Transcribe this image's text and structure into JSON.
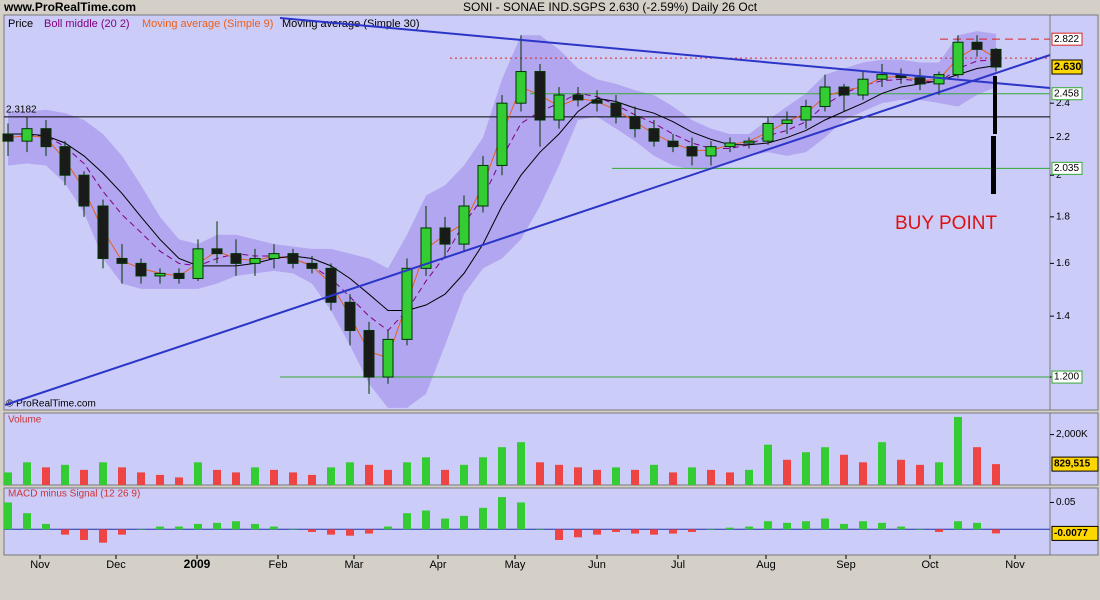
{
  "site": "www.ProRealTime.com",
  "title": "SONI - SONAE IND.SGPS   2.630 (-2.59%)   Daily  26 Oct",
  "copyright": "© ProRealTime.com",
  "xlabels": [
    "Nov",
    "Dec",
    "2009",
    "Feb",
    "Mar",
    "Apr",
    "May",
    "Jun",
    "Jul",
    "Aug",
    "Sep",
    "Oct",
    "Nov"
  ],
  "chart_data": [
    {
      "type": "candlestick",
      "price_label": "Price",
      "log_scale": true,
      "ylim": [
        1.104,
        3.0
      ],
      "yticks": [
        1.2,
        1.4,
        1.6,
        1.8,
        2,
        2.2,
        2.4
      ],
      "up_color": "#33cc33",
      "down_color": "#1a1a1a",
      "open": [
        2.22,
        2.18,
        2.25,
        2.15,
        2.0,
        1.85,
        1.62,
        1.6,
        1.55,
        1.56,
        1.54,
        1.66,
        1.64,
        1.6,
        1.62,
        1.64,
        1.6,
        1.58,
        1.45,
        1.35,
        1.2,
        1.32,
        1.58,
        1.75,
        1.68,
        1.85,
        2.05,
        2.4,
        2.6,
        2.3,
        2.45,
        2.42,
        2.4,
        2.32,
        2.25,
        2.18,
        2.15,
        2.1,
        2.15,
        2.17,
        2.18,
        2.28,
        2.3,
        2.38,
        2.5,
        2.45,
        2.55,
        2.58,
        2.56,
        2.52,
        2.58,
        2.8,
        2.75
      ],
      "high": [
        2.28,
        2.32,
        2.3,
        2.18,
        2.02,
        1.88,
        1.68,
        1.62,
        1.58,
        1.58,
        1.7,
        1.78,
        1.7,
        1.66,
        1.68,
        1.66,
        1.63,
        1.6,
        1.48,
        1.38,
        1.35,
        1.62,
        1.85,
        1.8,
        1.9,
        2.1,
        2.45,
        2.85,
        2.65,
        2.5,
        2.5,
        2.48,
        2.45,
        2.38,
        2.3,
        2.22,
        2.2,
        2.18,
        2.2,
        2.2,
        2.32,
        2.35,
        2.42,
        2.58,
        2.52,
        2.6,
        2.65,
        2.62,
        2.62,
        2.6,
        2.85,
        2.85,
        2.76
      ],
      "low": [
        2.1,
        2.12,
        2.1,
        1.95,
        1.8,
        1.58,
        1.52,
        1.52,
        1.52,
        1.52,
        1.53,
        1.6,
        1.55,
        1.55,
        1.58,
        1.58,
        1.56,
        1.42,
        1.3,
        1.15,
        1.18,
        1.3,
        1.55,
        1.62,
        1.65,
        1.82,
        2.0,
        2.35,
        2.15,
        2.25,
        2.38,
        2.35,
        2.28,
        2.2,
        2.15,
        2.12,
        2.05,
        2.05,
        2.12,
        2.14,
        2.16,
        2.22,
        2.25,
        2.35,
        2.35,
        2.42,
        2.5,
        2.52,
        2.48,
        2.45,
        2.56,
        2.7,
        2.6
      ],
      "close": [
        2.18,
        2.25,
        2.15,
        2.0,
        1.85,
        1.62,
        1.6,
        1.55,
        1.56,
        1.54,
        1.66,
        1.64,
        1.6,
        1.62,
        1.64,
        1.6,
        1.58,
        1.45,
        1.35,
        1.2,
        1.32,
        1.58,
        1.75,
        1.68,
        1.85,
        2.05,
        2.4,
        2.6,
        2.3,
        2.45,
        2.42,
        2.4,
        2.32,
        2.25,
        2.18,
        2.15,
        2.1,
        2.15,
        2.17,
        2.18,
        2.28,
        2.3,
        2.38,
        2.5,
        2.45,
        2.55,
        2.58,
        2.56,
        2.52,
        2.58,
        2.8,
        2.75,
        2.63
      ],
      "band": {
        "color": "#aa99ee",
        "upper": [
          2.35,
          2.35,
          2.36,
          2.34,
          2.3,
          2.22,
          2.1,
          1.95,
          1.8,
          1.7,
          1.68,
          1.72,
          1.72,
          1.7,
          1.68,
          1.67,
          1.66,
          1.66,
          1.64,
          1.62,
          1.58,
          1.72,
          1.9,
          1.95,
          2.05,
          2.2,
          2.55,
          2.85,
          2.85,
          2.75,
          2.62,
          2.55,
          2.52,
          2.48,
          2.45,
          2.38,
          2.3,
          2.25,
          2.22,
          2.22,
          2.3,
          2.38,
          2.46,
          2.58,
          2.62,
          2.66,
          2.68,
          2.68,
          2.66,
          2.66,
          2.85,
          2.88,
          2.86
        ],
        "lower": [
          2.05,
          2.06,
          2.05,
          1.96,
          1.82,
          1.62,
          1.52,
          1.5,
          1.5,
          1.5,
          1.5,
          1.52,
          1.55,
          1.56,
          1.57,
          1.56,
          1.52,
          1.42,
          1.3,
          1.18,
          1.11,
          1.11,
          1.15,
          1.3,
          1.48,
          1.58,
          1.62,
          1.7,
          1.85,
          2.05,
          2.3,
          2.32,
          2.25,
          2.18,
          2.1,
          2.05,
          2.03,
          2.03,
          2.06,
          2.1,
          2.12,
          2.1,
          2.12,
          2.2,
          2.3,
          2.35,
          2.4,
          2.42,
          2.42,
          2.4,
          2.38,
          2.45,
          2.5
        ]
      },
      "series": [
        {
          "name": "Boll middle (20 2)",
          "color": "#800080",
          "dashed": true,
          "values": [
            2.2,
            2.21,
            2.21,
            2.15,
            2.06,
            1.92,
            1.81,
            1.73,
            1.65,
            1.6,
            1.59,
            1.62,
            1.64,
            1.63,
            1.63,
            1.62,
            1.59,
            1.54,
            1.47,
            1.4,
            1.35,
            1.42,
            1.53,
            1.63,
            1.77,
            1.89,
            2.09,
            2.28,
            2.35,
            2.4,
            2.46,
            2.44,
            2.39,
            2.33,
            2.28,
            2.22,
            2.17,
            2.14,
            2.14,
            2.16,
            2.21,
            2.24,
            2.29,
            2.39,
            2.46,
            2.51,
            2.54,
            2.55,
            2.54,
            2.53,
            2.62,
            2.67,
            2.68
          ]
        },
        {
          "name": "Moving average (Simple 9)",
          "color": "#e8601c",
          "dashed": false,
          "values": [
            2.2,
            2.21,
            2.2,
            2.08,
            1.93,
            1.74,
            1.61,
            1.58,
            1.56,
            1.55,
            1.6,
            1.65,
            1.62,
            1.61,
            1.63,
            1.62,
            1.59,
            1.52,
            1.4,
            1.28,
            1.26,
            1.45,
            1.66,
            1.72,
            1.77,
            1.95,
            2.22,
            2.5,
            2.45,
            2.38,
            2.43,
            2.41,
            2.36,
            2.29,
            2.22,
            2.17,
            2.13,
            2.13,
            2.16,
            2.18,
            2.23,
            2.29,
            2.34,
            2.44,
            2.48,
            2.5,
            2.56,
            2.57,
            2.54,
            2.55,
            2.69,
            2.77,
            2.69
          ]
        },
        {
          "name": "Moving average (Simple 30)",
          "color": "#000000",
          "dashed": false,
          "values": [
            2.22,
            2.22,
            2.21,
            2.17,
            2.1,
            2.01,
            1.91,
            1.8,
            1.7,
            1.62,
            1.59,
            1.59,
            1.59,
            1.6,
            1.62,
            1.63,
            1.62,
            1.59,
            1.54,
            1.48,
            1.42,
            1.42,
            1.44,
            1.48,
            1.56,
            1.68,
            1.85,
            2.0,
            2.12,
            2.22,
            2.35,
            2.43,
            2.41,
            2.37,
            2.34,
            2.29,
            2.23,
            2.19,
            2.16,
            2.16,
            2.17,
            2.2,
            2.24,
            2.3,
            2.35,
            2.4,
            2.46,
            2.5,
            2.52,
            2.54,
            2.58,
            2.62,
            2.64
          ]
        }
      ],
      "levels": [
        {
          "value": 2.3182,
          "label": "2.3182",
          "color": "#000000",
          "side": "left"
        },
        {
          "value": 1.2,
          "label": "1.200",
          "color": "#33aa33",
          "side": "right"
        },
        {
          "value": 2.035,
          "label": "2.035",
          "color": "#33aa33",
          "side": "right"
        },
        {
          "value": 2.458,
          "label": "2.458",
          "color": "#33aa33",
          "side": "right"
        },
        {
          "value": 2.822,
          "label": "2.822",
          "color": "#dd2222",
          "side": "right",
          "dash": "8 5"
        },
        {
          "value": 2.69,
          "color": "#dd2222",
          "dash": "2 3"
        }
      ],
      "last_price": {
        "value": 2.63,
        "label": "2.630"
      },
      "annotation": "BUY POINT"
    },
    {
      "type": "bar",
      "title": "Volume",
      "ylim": [
        0,
        2857
      ],
      "yticks": [
        {
          "value": 2000,
          "label": "2,000K"
        }
      ],
      "color": "#33cc33",
      "down_color": "#ee4444",
      "values": [
        500,
        900,
        700,
        800,
        600,
        900,
        700,
        500,
        400,
        300,
        900,
        600,
        500,
        700,
        600,
        500,
        400,
        700,
        900,
        800,
        600,
        900,
        1100,
        600,
        800,
        1100,
        1500,
        1700,
        900,
        800,
        700,
        600,
        700,
        600,
        800,
        500,
        700,
        600,
        500,
        600,
        1600,
        1000,
        1300,
        1500,
        1200,
        900,
        1700,
        1000,
        800,
        900,
        2700,
        1500,
        829.515
      ],
      "last_label": "829,515"
    },
    {
      "type": "bar",
      "title": "MACD minus Signal (12 26 9)",
      "ylim": [
        -0.048,
        0.077
      ],
      "yticks": [
        0.05
      ],
      "color": "#33cc33",
      "down_color": "#ee4444",
      "values": [
        0.05,
        0.03,
        0.01,
        -0.01,
        -0.02,
        -0.025,
        -0.01,
        0.0,
        0.005,
        0.005,
        0.01,
        0.012,
        0.015,
        0.01,
        0.005,
        0.0,
        -0.005,
        -0.01,
        -0.012,
        -0.008,
        0.005,
        0.03,
        0.035,
        0.02,
        0.025,
        0.04,
        0.06,
        0.05,
        0.0,
        -0.02,
        -0.015,
        -0.01,
        -0.005,
        -0.008,
        -0.01,
        -0.008,
        -0.005,
        0.0,
        0.003,
        0.005,
        0.015,
        0.012,
        0.015,
        0.02,
        0.01,
        0.015,
        0.012,
        0.005,
        0.0,
        -0.005,
        0.015,
        0.012,
        -0.0077
      ],
      "last_label": -0.0077
    }
  ]
}
